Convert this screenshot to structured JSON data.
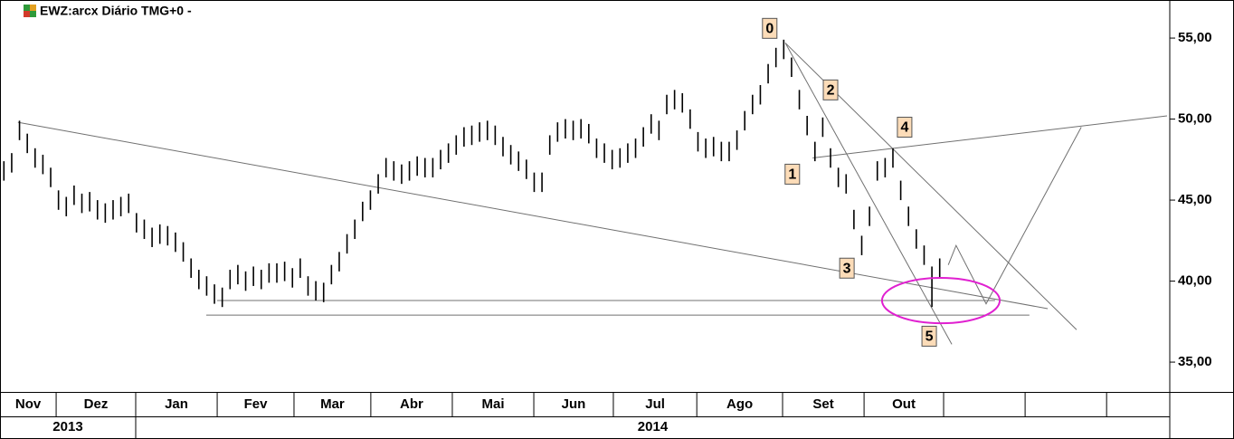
{
  "chart_data": {
    "type": "ohlc",
    "title": "EWZ:arcx Diário TMG+0  -",
    "color": "#000000",
    "xlim": [
      0,
      300
    ],
    "ylim": [
      33.16,
      57.35
    ],
    "yticks": [
      {
        "value": 35,
        "label": "35,00"
      },
      {
        "value": 40,
        "label": "40,00"
      },
      {
        "value": 45,
        "label": "45,00"
      },
      {
        "value": 50,
        "label": "50,00"
      },
      {
        "value": 55,
        "label": "55,00"
      }
    ],
    "xticks": [
      {
        "value": 0,
        "label": "Nov"
      },
      {
        "value": 14.4,
        "label": "Dez"
      },
      {
        "value": 34.8,
        "label": "Jan"
      },
      {
        "value": 55.7,
        "label": "Fev"
      },
      {
        "value": 75.4,
        "label": "Mar"
      },
      {
        "value": 95.1,
        "label": "Abr"
      },
      {
        "value": 116,
        "label": "Mai"
      },
      {
        "value": 136.9,
        "label": "Jun"
      },
      {
        "value": 157.3,
        "label": "Jul"
      },
      {
        "value": 178.7,
        "label": "Ago"
      },
      {
        "value": 200.7,
        "label": "Set"
      },
      {
        "value": 221.6,
        "label": "Out"
      },
      242,
      262.9,
      283.8
    ],
    "years": [
      {
        "value": 0,
        "label": "2013"
      },
      {
        "value": 34.8,
        "label": "2014"
      }
    ],
    "x": [
      1,
      3,
      5,
      7,
      9,
      11,
      13,
      15,
      17,
      19,
      21,
      23,
      25,
      27,
      29,
      31,
      33,
      35,
      37,
      39,
      41,
      43,
      45,
      47,
      49,
      51,
      53,
      55,
      57,
      59,
      61,
      63,
      65,
      67,
      69,
      71,
      73,
      75,
      77,
      79,
      81,
      83,
      85,
      87,
      89,
      91,
      93,
      95,
      97,
      99,
      101,
      103,
      105,
      107,
      109,
      111,
      113,
      115,
      117,
      119,
      121,
      123,
      125,
      127,
      129,
      131,
      133,
      135,
      137,
      139,
      141,
      143,
      145,
      147,
      149,
      151,
      153,
      155,
      157,
      159,
      161,
      163,
      165,
      167,
      169,
      171,
      173,
      175,
      177,
      179,
      181,
      183,
      185,
      187,
      189,
      191,
      193,
      195,
      197,
      199,
      201,
      203,
      205,
      207,
      209,
      211,
      213,
      215,
      217,
      219,
      221,
      223,
      225,
      227,
      229,
      231,
      233,
      235,
      237,
      239,
      241
    ],
    "high": [
      47.4,
      47.9,
      49.9,
      49.1,
      48.2,
      47.8,
      47.0,
      45.6,
      45.2,
      45.9,
      45.4,
      45.5,
      45.0,
      44.8,
      45.0,
      45.2,
      45.4,
      44.2,
      43.8,
      43.3,
      43.5,
      43.4,
      43.0,
      42.4,
      41.4,
      40.7,
      40.3,
      39.8,
      39.6,
      40.7,
      41.0,
      40.6,
      40.9,
      40.7,
      41.1,
      41.1,
      41.2,
      40.8,
      41.4,
      40.3,
      40.0,
      39.9,
      41.0,
      41.8,
      42.9,
      43.8,
      44.9,
      45.6,
      46.6,
      47.6,
      47.4,
      47.2,
      47.4,
      47.7,
      47.6,
      47.6,
      48.1,
      48.5,
      49.0,
      49.5,
      49.6,
      49.8,
      49.9,
      49.6,
      48.9,
      48.4,
      48.0,
      47.5,
      46.7,
      46.7,
      49.0,
      49.8,
      50.0,
      49.9,
      50.0,
      49.7,
      48.8,
      48.5,
      48.1,
      48.2,
      48.5,
      48.8,
      49.5,
      50.3,
      49.9,
      51.5,
      51.8,
      51.6,
      50.6,
      49.2,
      48.8,
      48.9,
      48.6,
      48.6,
      49.3,
      50.5,
      51.5,
      52.1,
      53.4,
      54.4,
      54.9,
      53.8,
      51.8,
      50.2,
      48.6,
      50.1,
      48.2,
      47.0,
      46.6,
      44.4,
      42.8,
      44.6,
      47.4,
      47.6,
      48.2,
      46.2,
      44.6,
      43.2,
      42.2,
      40.9,
      41.4
    ],
    "low": [
      46.2,
      46.7,
      48.7,
      47.9,
      47.0,
      46.6,
      45.8,
      44.4,
      44.0,
      44.7,
      44.2,
      44.3,
      43.8,
      43.6,
      43.8,
      44.0,
      44.2,
      43.0,
      42.6,
      42.1,
      42.3,
      42.2,
      41.8,
      41.2,
      40.2,
      39.5,
      39.1,
      38.6,
      38.4,
      39.5,
      39.8,
      39.4,
      39.7,
      39.5,
      39.9,
      39.9,
      40.0,
      39.6,
      40.2,
      39.1,
      38.8,
      38.7,
      39.8,
      40.6,
      41.7,
      42.6,
      43.7,
      44.4,
      45.4,
      46.4,
      46.2,
      46.0,
      46.2,
      46.5,
      46.4,
      46.4,
      46.9,
      47.3,
      47.8,
      48.3,
      48.4,
      48.6,
      48.7,
      48.4,
      47.7,
      47.2,
      46.8,
      46.3,
      45.5,
      45.5,
      47.8,
      48.6,
      48.8,
      48.7,
      48.8,
      48.5,
      47.6,
      47.3,
      46.9,
      47.0,
      47.3,
      47.6,
      48.3,
      49.1,
      48.7,
      50.3,
      50.6,
      50.4,
      49.4,
      48.0,
      47.6,
      47.7,
      47.4,
      47.4,
      48.1,
      49.3,
      50.3,
      50.9,
      52.2,
      53.2,
      53.7,
      52.6,
      50.6,
      49.0,
      47.4,
      48.9,
      47.0,
      45.8,
      45.4,
      43.2,
      41.6,
      43.4,
      46.2,
      46.4,
      47.0,
      45.0,
      43.4,
      42.0,
      41.0,
      38.4,
      40.2
    ],
    "lines": [
      {
        "x": [
          4.6,
          268.7
        ],
        "y": [
          49.8,
          38.3
        ]
      },
      {
        "x": [
          52.9,
          264.0
        ],
        "y": [
          37.9,
          37.9
        ]
      },
      {
        "x": [
          55.7,
          255.2
        ],
        "y": [
          38.8,
          38.8
        ]
      },
      {
        "x": [
          201.4,
          244.1
        ],
        "y": [
          54.7,
          36.1
        ]
      },
      {
        "x": [
          201.4,
          276.1
        ],
        "y": [
          54.7,
          37.0
        ]
      },
      {
        "x": [
          208.4,
          299.3
        ],
        "y": [
          47.6,
          50.2
        ]
      },
      {
        "x": [
          243.2,
          245.2,
          252.9,
          277.3
        ],
        "y": [
          41.0,
          42.2,
          38.6,
          49.5
        ]
      }
    ],
    "line_color": "#707070",
    "ellipse": {
      "x": 241.3,
      "y": 38.8,
      "rx": 15.1,
      "ry": 1.4,
      "color": "#e020d0"
    },
    "wave_labels": [
      {
        "label": "0",
        "x": 197.4,
        "y": 55.6
      },
      {
        "label": "1",
        "x": 203.2,
        "y": 46.6
      },
      {
        "label": "2",
        "x": 213.0,
        "y": 51.8
      },
      {
        "label": "3",
        "x": 217.2,
        "y": 40.8
      },
      {
        "label": "4",
        "x": 232.0,
        "y": 49.5
      },
      {
        "label": "5",
        "x": 238.3,
        "y": 36.6
      }
    ]
  }
}
